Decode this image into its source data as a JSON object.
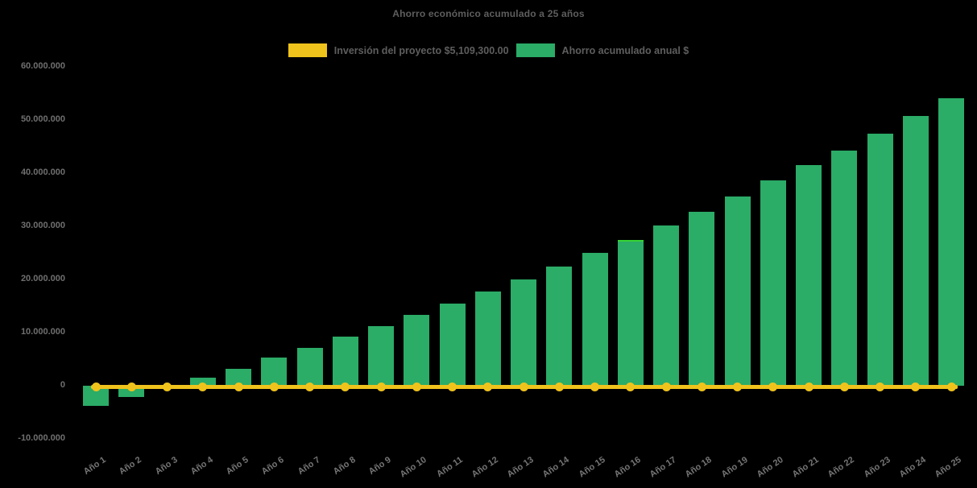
{
  "title": "Ahorro económico acumulado a 25 años",
  "background_color": "#000000",
  "legend": [
    {
      "label": "Inversión del proyecto $5,109,300.00",
      "color": "#efc31c"
    },
    {
      "label": "Ahorro acumulado anual $",
      "color": "#2bac67"
    }
  ],
  "chart_data": {
    "type": "bar",
    "title": "Ahorro económico acumulado a 25 años",
    "categories": [
      "Año 1",
      "Año 2",
      "Año 3",
      "Año 4",
      "Año 5",
      "Año 6",
      "Año 7",
      "Año 8",
      "Año 9",
      "Año 10",
      "Año 11",
      "Año 12",
      "Año 13",
      "Año 14",
      "Año 15",
      "Año 16",
      "Año 17",
      "Año 18",
      "Año 19",
      "Año 20",
      "Año 21",
      "Año 22",
      "Año 23",
      "Año 24",
      "Año 25"
    ],
    "series": [
      {
        "name": "Inversión del proyecto $5,109,300.00",
        "type": "line",
        "color": "#efc31c",
        "constant_value": -200000,
        "markers_every_category": true
      },
      {
        "name": "Ahorro acumulado anual $",
        "type": "bar",
        "color": "#2bac67",
        "values": [
          -3800000,
          -2100000,
          -300000,
          1500000,
          3200000,
          5300000,
          7100000,
          9200000,
          11200000,
          13300000,
          15500000,
          17800000,
          20000000,
          22500000,
          25000000,
          27500000,
          30200000,
          32700000,
          35600000,
          38600000,
          41500000,
          44300000,
          47500000,
          50800000,
          54100000
        ]
      }
    ],
    "y_axis": {
      "tick_values": [
        60000000,
        50000000,
        40000000,
        30000000,
        20000000,
        10000000,
        0,
        -10000000
      ],
      "tick_labels": [
        "60.000.000",
        "50.000.000",
        "40.000.000",
        "30.000.000",
        "20.000.000",
        "10.000.000",
        "0",
        "-10.000.000"
      ]
    },
    "ylim": [
      -10000000,
      60000000
    ],
    "grid": false,
    "legend_position": "top",
    "bright_top_edge": {
      "year_index": 16,
      "color": "#35d435"
    }
  }
}
